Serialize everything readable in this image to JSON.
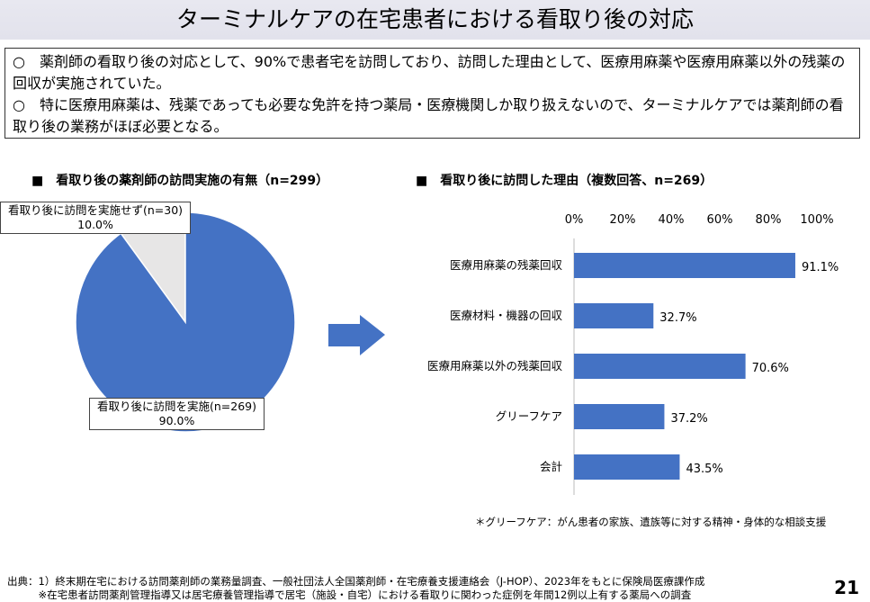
{
  "title": "ターミナルケアの在宅患者における看取り後の対応",
  "summary": [
    "○　薬剤師の看取り後の対応として、90%で患者宅を訪問しており、訪問した理由として、医療用麻薬や医療用麻薬以外の残薬の回収が実施されていた。",
    "○　特に医療用麻薬は、残薬であっても必要な免許を持つ薬局・医療機関しか取り扱えないので、ターミナルケアでは薬剤師の看取り後の業務がほぼ必要となる。"
  ],
  "chart_data": [
    {
      "type": "pie",
      "title": "■　看取り後の薬剤師の訪問実施の有無（n=299）",
      "slices": [
        {
          "label": "看取り後に訪問を実施(n=269)",
          "pct_label": "90.0%",
          "value": 90.0,
          "color": "#4472c4"
        },
        {
          "label": "看取り後に訪問を実施せず(n=30)",
          "pct_label": "10.0%",
          "value": 10.0,
          "color": "#e7e6e6"
        }
      ]
    },
    {
      "type": "bar",
      "orientation": "horizontal",
      "title": "■　看取り後に訪問した理由（複数回答、n=269）",
      "xlim": [
        0,
        100
      ],
      "xticks": [
        "0%",
        "20%",
        "40%",
        "60%",
        "80%",
        "100%"
      ],
      "categories": [
        "医療用麻薬の残薬回収",
        "医療材料・機器の回収",
        "医療用麻薬以外の残薬回収",
        "グリーフケア",
        "会計"
      ],
      "values": [
        91.1,
        32.7,
        70.6,
        37.2,
        43.5
      ],
      "value_labels": [
        "91.1%",
        "32.7%",
        "70.6%",
        "37.2%",
        "43.5%"
      ],
      "color": "#4472c4"
    }
  ],
  "note": "＊グリーフケア：がん患者の家族、遺族等に対する精神・身体的な相談支援",
  "source": [
    "出典：1）終末期在宅における訪問薬剤師の業務量調査、一般社団法人全国薬剤師・在宅療養支援連絡会（J-HOP）、2023年をもとに保険局医療課作成",
    "　　　※在宅患者訪問薬剤管理指導又は居宅療養管理指導で居宅（施設・自宅）における看取りに関わった症例を年間12例以上有する薬局への調査"
  ],
  "page_number": "21"
}
